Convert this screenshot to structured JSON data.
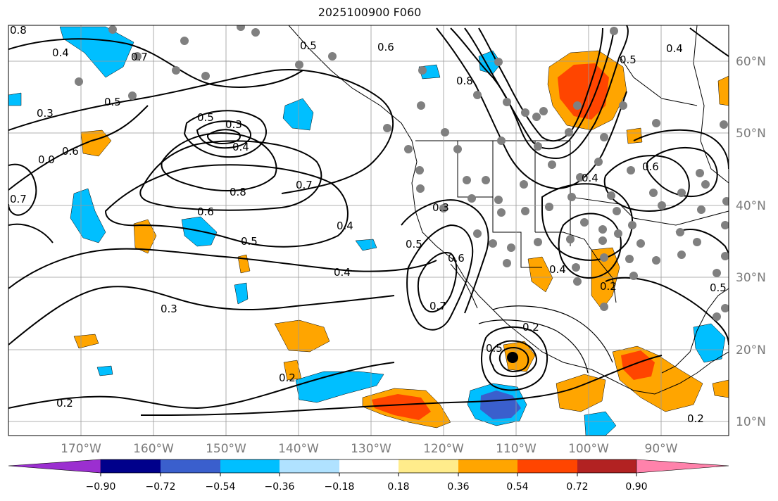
{
  "title": "2025100900 F060",
  "lon_labels": [
    "170°W",
    "160°W",
    "150°W",
    "140°W",
    "130°W",
    "120°W",
    "110°W",
    "100°W",
    "90°W"
  ],
  "lat_labels": [
    "60°N",
    "50°N",
    "40°N",
    "30°N",
    "20°N",
    "10°N"
  ],
  "contour_labels": [
    "0.8",
    "0.4",
    "0.3",
    "0.5",
    "0.6",
    "0.7",
    "0.3",
    "0.4",
    "0.5",
    "0.8",
    "0.7",
    "0.6",
    "0.5",
    "0.4",
    "0.3",
    "0.2",
    "0.5",
    "0.4",
    "0.2",
    "0.3",
    "0.5",
    "0.6",
    "0.7",
    "0.5",
    "0.2",
    "0.4",
    "0.8",
    "0.4",
    "0.6",
    "0.5",
    "0.4",
    "0.2",
    "0.5",
    "0.2",
    "0.0",
    "0.7",
    "0.6"
  ],
  "colorbar": {
    "colors": [
      "#9b2fd0",
      "#00008b",
      "#3a5fcd",
      "#00bfff",
      "#b0e2ff",
      "#ffffff",
      "#ffec8b",
      "#ffa500",
      "#ff4500",
      "#b22222",
      "#ff82ab"
    ],
    "tick_labels": [
      "−0.90",
      "−0.72",
      "−0.54",
      "−0.36",
      "−0.18",
      "0.18",
      "0.36",
      "0.54",
      "0.72",
      "0.90"
    ]
  },
  "chart_data": {
    "type": "heatmap",
    "title": "2025100900 F060",
    "x_axis": [
      "170°W",
      "160°W",
      "150°W",
      "140°W",
      "130°W",
      "120°W",
      "110°W",
      "100°W",
      "90°W"
    ],
    "y_axis": [
      "60°N",
      "50°N",
      "40°N",
      "30°N",
      "20°N",
      "10°N"
    ],
    "contour_levels": [
      0.2,
      0.3,
      0.4,
      0.5,
      0.6,
      0.7,
      0.8
    ],
    "shading_levels": [
      -0.9,
      -0.72,
      -0.54,
      -0.36,
      -0.18,
      0.18,
      0.36,
      0.54,
      0.72,
      0.9
    ],
    "grid": true
  }
}
